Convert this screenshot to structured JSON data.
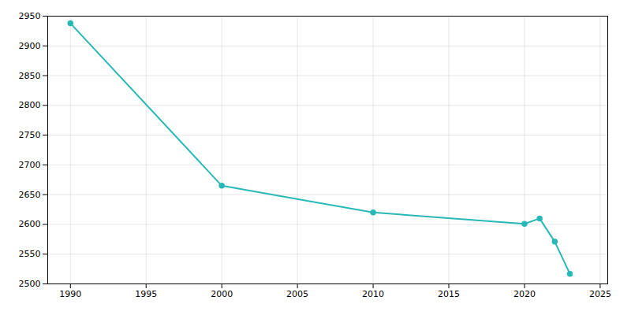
{
  "chart_data": {
    "type": "line",
    "x": [
      1990,
      2000,
      2010,
      2020,
      2021,
      2022,
      2023
    ],
    "values": [
      2938,
      2665,
      2620,
      2601,
      2610,
      2571,
      2517
    ],
    "color": "#29b8b8",
    "marker": "circle",
    "xlim": [
      1988.5,
      2025.5
    ],
    "ylim": [
      2500,
      2950
    ],
    "xticks": [
      1990,
      1995,
      2000,
      2005,
      2010,
      2015,
      2020,
      2025
    ],
    "yticks": [
      2500,
      2550,
      2600,
      2650,
      2700,
      2750,
      2800,
      2850,
      2900,
      2950
    ],
    "grid": true
  }
}
